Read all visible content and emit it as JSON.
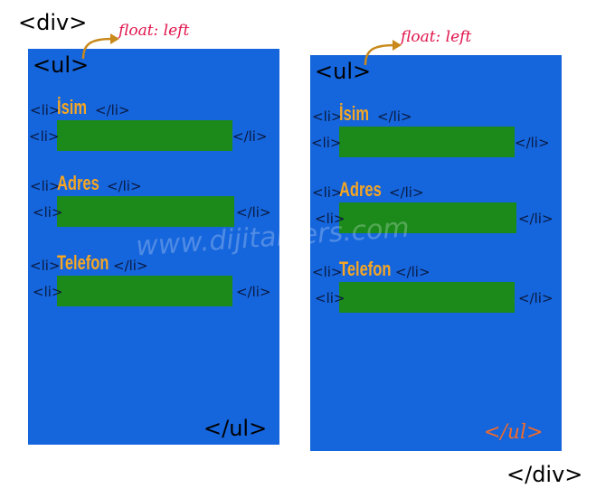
{
  "div_open": "<div>",
  "div_close": "</div>",
  "watermark": "www.dijitalders.com",
  "colors": {
    "ul_box": "#1565dc",
    "input_box": "#1b8a1b",
    "label": "#f5a623",
    "annotation": "#e0144c",
    "arrow": "#c8891a"
  },
  "lists": [
    {
      "annotation": "float: left",
      "ul_open": "<ul>",
      "ul_close": "</ul>",
      "items": [
        {
          "li_open": "<li>",
          "label": "İsim",
          "li_close": "</li>",
          "input_li_open": "<li>",
          "input_li_close": "</li>"
        },
        {
          "li_open": "<li>",
          "label": "Adres",
          "li_close": "</li>",
          "input_li_open": "<li>",
          "input_li_close": "</li>"
        },
        {
          "li_open": "<li>",
          "label": "Telefon",
          "li_close": "</li>",
          "input_li_open": "<li>",
          "input_li_close": "</li>"
        }
      ]
    },
    {
      "annotation": "float: left",
      "ul_open": "<ul>",
      "ul_close": "</ul>",
      "items": [
        {
          "li_open": "<li>",
          "label": "İsim",
          "li_close": "</li>",
          "input_li_open": "<li>",
          "input_li_close": "</li>"
        },
        {
          "li_open": "<li>",
          "label": "Adres",
          "li_close": "</li>",
          "input_li_open": "<li>",
          "input_li_close": "</li>"
        },
        {
          "li_open": "<li>",
          "label": "Telefon",
          "li_close": "</li>",
          "input_li_open": "<li>",
          "input_li_close": "</li>"
        }
      ]
    }
  ]
}
